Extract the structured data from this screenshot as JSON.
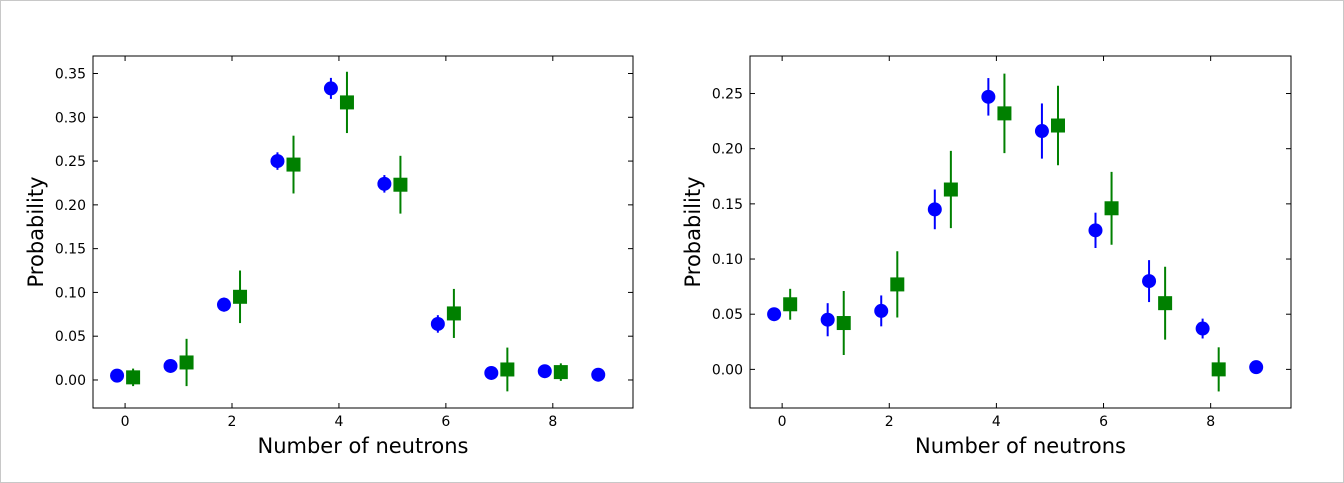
{
  "chart_data": [
    {
      "type": "scatter",
      "title": "",
      "xlabel": "Number of neutrons",
      "ylabel": "Probability",
      "xlim": [
        -0.6,
        9.5
      ],
      "ylim": [
        -0.032,
        0.37
      ],
      "xticks": [
        0,
        2,
        4,
        6,
        8
      ],
      "yticks": [
        0.0,
        0.05,
        0.1,
        0.15,
        0.2,
        0.25,
        0.3,
        0.35
      ],
      "ytick_labels": [
        "0.00",
        "0.05",
        "0.10",
        "0.15",
        "0.20",
        "0.25",
        "0.30",
        "0.35"
      ],
      "series": [
        {
          "name": "blue-circles",
          "marker": "circle",
          "color": "#0000ff",
          "offset": -0.15,
          "x": [
            0,
            1,
            2,
            3,
            4,
            5,
            6,
            7,
            8,
            9
          ],
          "y": [
            0.005,
            0.016,
            0.086,
            0.25,
            0.333,
            0.224,
            0.064,
            0.008,
            0.01,
            0.006
          ],
          "err": [
            0.004,
            0.004,
            0.008,
            0.01,
            0.012,
            0.01,
            0.01,
            0.004,
            0.004,
            0.003
          ]
        },
        {
          "name": "green-squares",
          "marker": "square",
          "color": "#008000",
          "offset": 0.15,
          "x": [
            0,
            1,
            2,
            3,
            4,
            5,
            6,
            7,
            8
          ],
          "y": [
            0.003,
            0.02,
            0.095,
            0.246,
            0.317,
            0.223,
            0.076,
            0.012,
            0.009
          ],
          "err": [
            0.01,
            0.027,
            0.03,
            0.033,
            0.035,
            0.033,
            0.028,
            0.025,
            0.01
          ]
        }
      ]
    },
    {
      "type": "scatter",
      "title": "",
      "xlabel": "Number of neutrons",
      "ylabel": "Probability",
      "xlim": [
        -0.6,
        9.5
      ],
      "ylim": [
        -0.035,
        0.284
      ],
      "xticks": [
        0,
        2,
        4,
        6,
        8
      ],
      "yticks": [
        0.0,
        0.05,
        0.1,
        0.15,
        0.2,
        0.25
      ],
      "ytick_labels": [
        "0.00",
        "0.05",
        "0.10",
        "0.15",
        "0.20",
        "0.25"
      ],
      "series": [
        {
          "name": "blue-circles",
          "marker": "circle",
          "color": "#0000ff",
          "offset": -0.15,
          "x": [
            0,
            1,
            2,
            3,
            4,
            5,
            6,
            7,
            8,
            9
          ],
          "y": [
            0.05,
            0.045,
            0.053,
            0.145,
            0.247,
            0.216,
            0.126,
            0.08,
            0.037,
            0.002
          ],
          "err": [
            0.006,
            0.015,
            0.014,
            0.018,
            0.017,
            0.025,
            0.016,
            0.019,
            0.009,
            0.002
          ]
        },
        {
          "name": "green-squares",
          "marker": "square",
          "color": "#008000",
          "offset": 0.15,
          "x": [
            0,
            1,
            2,
            3,
            4,
            5,
            6,
            7,
            8
          ],
          "y": [
            0.059,
            0.042,
            0.077,
            0.163,
            0.232,
            0.221,
            0.146,
            0.06,
            0.0
          ],
          "err": [
            0.014,
            0.029,
            0.03,
            0.035,
            0.036,
            0.036,
            0.033,
            0.033,
            0.02
          ]
        }
      ]
    }
  ]
}
